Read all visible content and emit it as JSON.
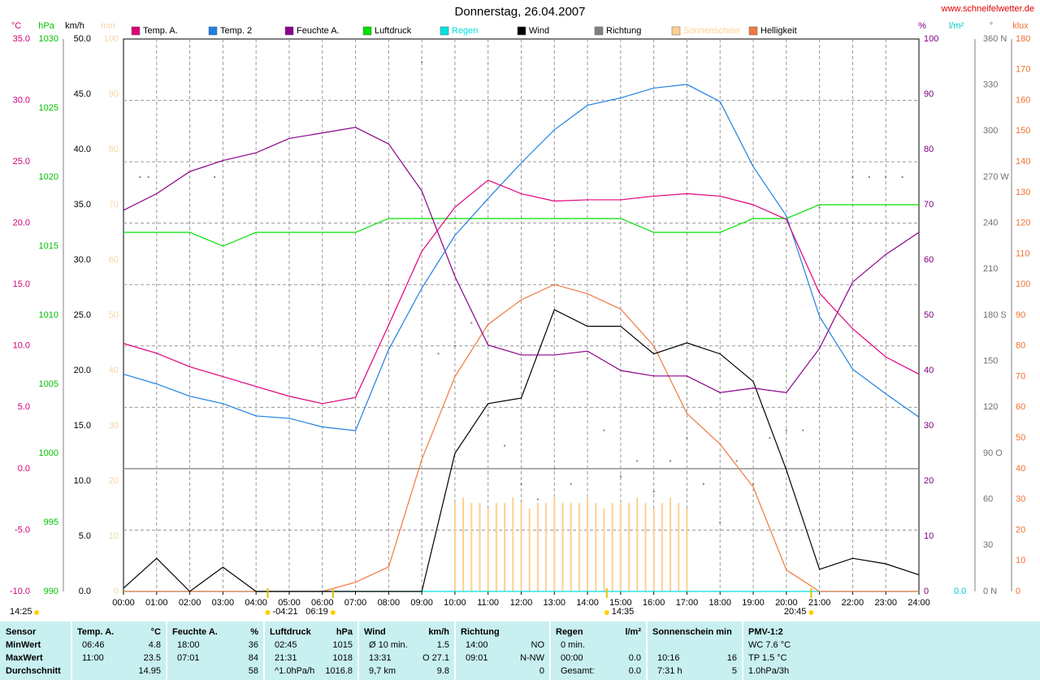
{
  "chart_data": {
    "type": "line",
    "title": "Donnerstag, 26.04.2007",
    "source": "www.schneifelwetter.de",
    "xlim": [
      0,
      24
    ],
    "xticks": [
      {
        "value": 0,
        "label": "00:00"
      },
      {
        "value": 1,
        "label": "01:00"
      },
      {
        "value": 2,
        "label": "02:00"
      },
      {
        "value": 3,
        "label": "03:00"
      },
      {
        "value": 4,
        "label": "04:00"
      },
      {
        "value": 5,
        "label": "05:00"
      },
      {
        "value": 6,
        "label": "06:00"
      },
      {
        "value": 7,
        "label": "07:00"
      },
      {
        "value": 8,
        "label": "08:00"
      },
      {
        "value": 9,
        "label": "09:00"
      },
      {
        "value": 10,
        "label": "10:00"
      },
      {
        "value": 11,
        "label": "11:00"
      },
      {
        "value": 12,
        "label": "12:00"
      },
      {
        "value": 13,
        "label": "13:00"
      },
      {
        "value": 14,
        "label": "14:00"
      },
      {
        "value": 15,
        "label": "15:00"
      },
      {
        "value": 16,
        "label": "16:00"
      },
      {
        "value": 17,
        "label": "17:00"
      },
      {
        "value": 18,
        "label": "18:00"
      },
      {
        "value": 19,
        "label": "19:00"
      },
      {
        "value": 20,
        "label": "20:00"
      },
      {
        "value": 21,
        "label": "21:00"
      },
      {
        "value": 22,
        "label": "22:00"
      },
      {
        "value": 23,
        "label": "23:00"
      },
      {
        "value": 24,
        "label": "24:00"
      }
    ],
    "x": [
      0,
      1,
      2,
      3,
      4,
      5,
      6,
      7,
      8,
      9,
      10,
      11,
      12,
      13,
      14,
      15,
      16,
      17,
      18,
      19,
      20,
      21,
      22,
      23,
      24
    ],
    "grid": true,
    "axes": [
      {
        "unit": "°C",
        "color": "#d0007a",
        "lim": [
          -10,
          35
        ],
        "ticks": [
          {
            "value": -10,
            "label": "-10.0"
          },
          {
            "value": -5,
            "label": "-5.0"
          },
          {
            "value": 0,
            "label": "0.0"
          },
          {
            "value": 5,
            "label": "5.0"
          },
          {
            "value": 10,
            "label": "10.0"
          },
          {
            "value": 15,
            "label": "15.0"
          },
          {
            "value": 20,
            "label": "20.0"
          },
          {
            "value": 25,
            "label": "25.0"
          },
          {
            "value": 30,
            "label": "30.0"
          },
          {
            "value": 35,
            "label": "35.0"
          }
        ]
      },
      {
        "unit": "hPa",
        "color": "#00c000",
        "lim": [
          990,
          1030
        ],
        "ticks": [
          990,
          995,
          1000,
          1005,
          1010,
          1015,
          1020,
          1025,
          1030
        ]
      },
      {
        "unit": "km/h",
        "color": "#000000",
        "lim": [
          0,
          50
        ],
        "ticks": [
          {
            "value": 0,
            "label": "0.0"
          },
          {
            "value": 5,
            "label": "5.0"
          },
          {
            "value": 10,
            "label": "10.0"
          },
          {
            "value": 15,
            "label": "15.0"
          },
          {
            "value": 20,
            "label": "20.0"
          },
          {
            "value": 25,
            "label": "25.0"
          },
          {
            "value": 30,
            "label": "30.0"
          },
          {
            "value": 35,
            "label": "35.0"
          },
          {
            "value": 40,
            "label": "40.0"
          },
          {
            "value": 45,
            "label": "45.0"
          },
          {
            "value": 50,
            "label": "50.0"
          }
        ]
      },
      {
        "unit": "min",
        "color": "#f5d5a8",
        "lim": [
          0,
          100
        ],
        "ticks": [
          0,
          10,
          20,
          30,
          40,
          50,
          60,
          70,
          80,
          90,
          100
        ]
      },
      {
        "unit": "%",
        "color": "#800080",
        "lim": [
          0,
          100
        ],
        "ticks": [
          0,
          10,
          20,
          30,
          40,
          50,
          60,
          70,
          80,
          90,
          100
        ]
      },
      {
        "unit": "l/m²",
        "color": "#00c8c8",
        "lim": [
          0,
          10
        ],
        "ticks": [
          {
            "value": 0,
            "label": "0.0"
          }
        ]
      },
      {
        "unit": "°",
        "color": "#707070",
        "lim": [
          0,
          360
        ],
        "ticks": [
          {
            "value": 0,
            "label": "0 N"
          },
          30,
          60,
          {
            "value": 90,
            "label": "90 O"
          },
          120,
          150,
          {
            "value": 180,
            "label": "180 S"
          },
          210,
          240,
          {
            "value": 270,
            "label": "270 W"
          },
          300,
          330,
          {
            "value": 360,
            "label": "360 N"
          }
        ]
      },
      {
        "unit": "klux",
        "color": "#f07030",
        "lim": [
          0,
          180
        ],
        "ticks": [
          0,
          10,
          20,
          30,
          40,
          50,
          60,
          70,
          80,
          90,
          100,
          110,
          120,
          130,
          140,
          150,
          160,
          170,
          180
        ]
      }
    ],
    "series": [
      {
        "name": "Temp. A.",
        "color": "#e0007a",
        "axis": 0,
        "values": [
          10.2,
          9.4,
          8.3,
          7.5,
          6.7,
          5.9,
          5.3,
          5.8,
          11.7,
          17.7,
          21.3,
          23.5,
          22.4,
          21.8,
          21.9,
          21.9,
          22.2,
          22.4,
          22.2,
          21.5,
          20.3,
          14.3,
          11.4,
          9.1,
          7.7
        ]
      },
      {
        "name": "Temp. 2",
        "color": "#2080e0",
        "axis": 0,
        "values": [
          7.7,
          6.9,
          5.9,
          5.3,
          4.3,
          4.1,
          3.4,
          3.1,
          9.7,
          14.7,
          19,
          22,
          24.9,
          27.6,
          29.6,
          30.2,
          31,
          31.3,
          29.9,
          24.6,
          20.6,
          12.4,
          8.1,
          6.1,
          4.2
        ]
      },
      {
        "name": "Feuchte A.",
        "color": "#8b008b",
        "axis": 4,
        "values": [
          69,
          72,
          76,
          78,
          79.4,
          82,
          83,
          84,
          81,
          72.5,
          57,
          44.6,
          42.8,
          42.8,
          43.5,
          40,
          39,
          39,
          36,
          36.8,
          36,
          44,
          56,
          61,
          65
        ]
      },
      {
        "name": "Luftdruck",
        "color": "#00e000",
        "axis": 1,
        "values": [
          1016,
          1016,
          1016,
          1015,
          1016,
          1016,
          1016,
          1016,
          1017,
          1017,
          1017,
          1017,
          1017,
          1017,
          1017,
          1017,
          1016,
          1016,
          1016,
          1017,
          1017,
          1018,
          1018,
          1018,
          1018
        ]
      },
      {
        "name": "Regen",
        "color": "#00e0e0",
        "axis": 5,
        "x": [
          0,
          24
        ],
        "values": [
          0,
          0
        ]
      },
      {
        "name": "Wind",
        "color": "#000000",
        "axis": 2,
        "values": [
          0.3,
          3,
          0,
          2.2,
          0,
          0,
          0,
          0,
          0,
          0,
          12.5,
          17,
          17.5,
          25.5,
          24,
          24,
          21.5,
          22.5,
          21.5,
          19,
          11,
          2,
          3,
          2.5,
          1.5
        ]
      },
      {
        "name": "Richtung",
        "color": "#808080",
        "axis": 6,
        "type": "scatter",
        "x": [
          0.5,
          0.75,
          2.75,
          9,
          9.5,
          10,
          10.5,
          11,
          11.5,
          12,
          12.5,
          13,
          13.5,
          14,
          14.5,
          15,
          15.5,
          16,
          16.5,
          17,
          17.5,
          18,
          18.5,
          19,
          19.5,
          20,
          20.5,
          21,
          22,
          22.5,
          23,
          23.5,
          24
        ],
        "values": [
          270,
          270,
          270,
          345,
          155,
          160,
          175,
          115,
          95,
          70,
          60,
          80,
          70,
          152,
          105,
          75,
          85,
          65,
          85,
          100,
          70,
          45,
          85,
          70,
          100,
          105,
          105,
          250,
          270,
          270,
          270,
          270,
          270
        ]
      },
      {
        "name": "Sonnenschein",
        "color": "#ffd090",
        "axis": 3,
        "type": "bar",
        "x": [
          10,
          10.25,
          10.5,
          10.75,
          11,
          11.25,
          11.5,
          11.75,
          12,
          12.25,
          12.5,
          12.75,
          13,
          13.25,
          13.5,
          13.75,
          14,
          14.25,
          14.5,
          14.75,
          15,
          15.25,
          15.5,
          15.75,
          16,
          16.25,
          16.5,
          16.75,
          17
        ],
        "values": [
          16,
          17,
          16,
          16,
          15,
          16,
          16,
          17,
          16,
          15,
          16,
          16,
          17,
          16,
          16,
          16,
          17,
          16,
          15,
          16,
          16,
          16,
          17,
          16,
          15,
          16,
          17,
          16,
          15
        ]
      },
      {
        "name": "Helligkeit",
        "color": "#f07840",
        "axis": 7,
        "values": [
          0,
          0,
          0,
          0,
          0,
          0,
          0,
          3,
          8,
          43,
          70,
          87,
          95,
          100,
          97,
          92,
          80,
          58,
          48,
          34,
          7,
          0,
          0,
          0,
          0
        ]
      }
    ],
    "day_length": "14:25",
    "annotations": [
      {
        "x": 4.35,
        "label": "-04:21"
      },
      {
        "x": 6.32,
        "label": "06:19"
      },
      {
        "x": 14.58,
        "label": "14:35"
      },
      {
        "x": 20.75,
        "label": "20:45"
      }
    ]
  },
  "summary_table": {
    "columns": [
      {
        "name": "Sensor"
      },
      {
        "name": "Temp. A.",
        "unit": "°C"
      },
      {
        "name": "Feuchte A.",
        "unit": "%"
      },
      {
        "name": "Luftdruck",
        "unit": "hPa"
      },
      {
        "name": "Wind",
        "unit": "km/h"
      },
      {
        "name": "Richtung"
      },
      {
        "name": "Regen",
        "unit": "l/m²"
      },
      {
        "name": "Sonnenschein min"
      },
      {
        "name": "PMV-1:2"
      }
    ],
    "rows": [
      {
        "label": "MinWert",
        "cells": [
          {
            "left": "06:46",
            "right": "4.8"
          },
          {
            "left": "18:00",
            "right": "36"
          },
          {
            "left": "02:45",
            "right": "1015"
          },
          {
            "left": "Ø 10 min.",
            "right": "1.5"
          },
          {
            "left": "14:00",
            "right": "NO"
          },
          {
            "left": "0 min."
          },
          {},
          {
            "left": "WC 7.6 °C"
          }
        ]
      },
      {
        "label": "MaxWert",
        "cells": [
          {
            "left": "11:00",
            "right": "23.5"
          },
          {
            "left": "07:01",
            "right": "84"
          },
          {
            "left": "21:31",
            "right": "1018"
          },
          {
            "left": "13:31",
            "right": "O 27.1"
          },
          {
            "left": "09:01",
            "right": "N-NW"
          },
          {
            "left": "00:00",
            "right": "0.0"
          },
          {
            "left": "10:16",
            "right": "16"
          },
          {
            "left": "TP 1.5 °C"
          }
        ]
      },
      {
        "label": "Durchschnitt",
        "cells": [
          {
            "right": "14.95"
          },
          {
            "right": "58"
          },
          {
            "left": "^1.0hPa/h",
            "right": "1016.8"
          },
          {
            "left": "9,7 km",
            "right": "9.8"
          },
          {
            "right": "0"
          },
          {
            "left": "Gesamt:",
            "right": "0.0"
          },
          {
            "left": "7:31 h",
            "right": "5"
          },
          {
            "left": "1.0hPa/3h"
          }
        ]
      }
    ]
  }
}
